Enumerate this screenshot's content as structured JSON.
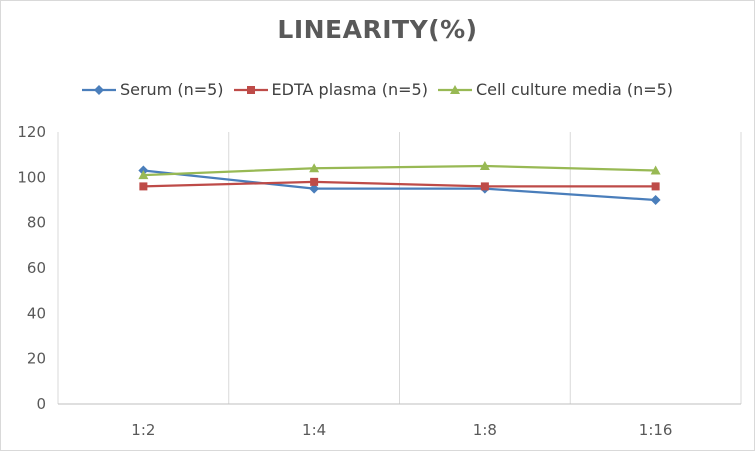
{
  "chart_data": {
    "type": "line",
    "title": "LINEARITY(%)",
    "categories": [
      "1:2",
      "1:4",
      "1:8",
      "1:16"
    ],
    "ylim": [
      0,
      120
    ],
    "yticks": [
      0,
      20,
      40,
      60,
      80,
      100,
      120
    ],
    "grid": "vertical",
    "legend_position": "top",
    "series": [
      {
        "name": "Serum (n=5)",
        "color": "#4a7ebb",
        "marker": "diamond",
        "values": [
          103,
          95,
          95,
          90
        ]
      },
      {
        "name": "EDTA plasma (n=5)",
        "color": "#be4b48",
        "marker": "square",
        "values": [
          96,
          98,
          96,
          96
        ]
      },
      {
        "name": "Cell culture media (n=5)",
        "color": "#98b954",
        "marker": "triangle",
        "values": [
          101,
          104,
          105,
          103
        ]
      }
    ]
  }
}
